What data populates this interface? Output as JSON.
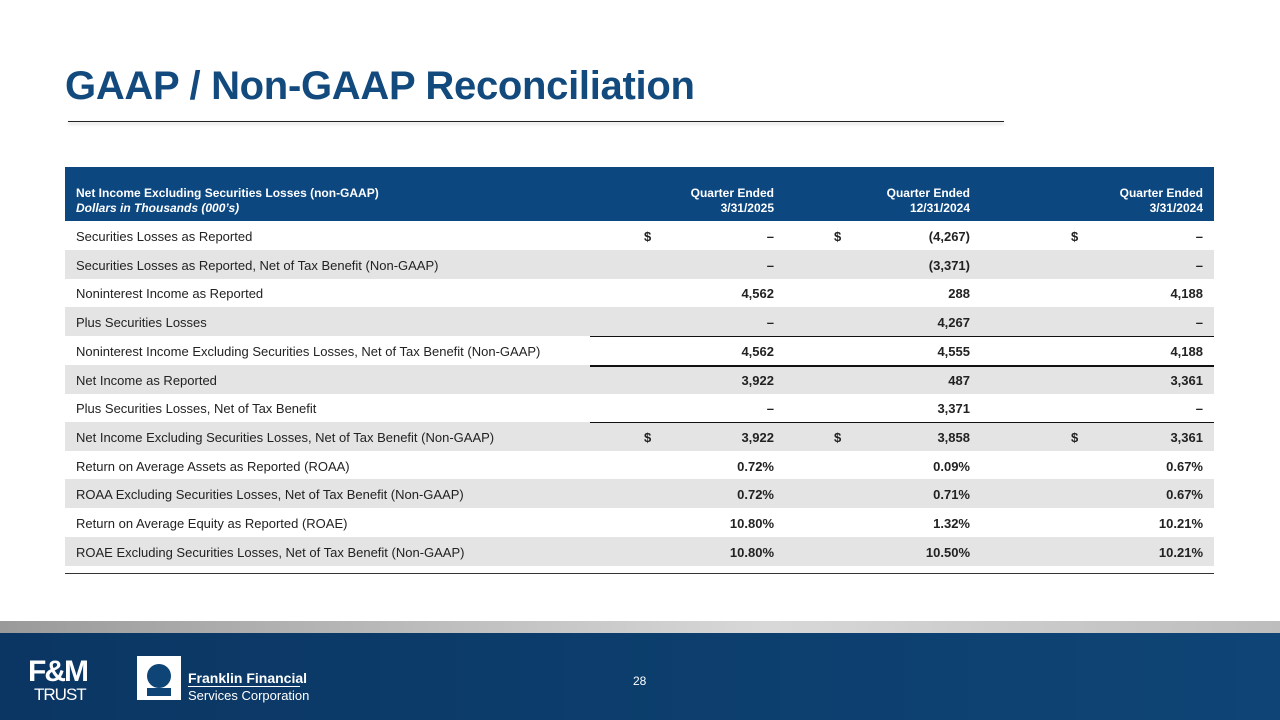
{
  "header": {
    "title": "GAAP / Non-GAAP Reconciliation"
  },
  "table": {
    "heading": [
      "Net Income Excluding Securities Losses (non-GAAP)",
      "Dollars in Thousands (000’s)"
    ],
    "columns": [
      [
        "Quarter Ended",
        "3/31/2025"
      ],
      [
        "Quarter Ended",
        "12/31/2024"
      ],
      [
        "Quarter Ended",
        "3/31/2024"
      ]
    ],
    "rows": [
      {
        "label": "Securities Losses as Reported",
        "dollar": "$",
        "values": [
          "–",
          "(4,267)",
          "–"
        ]
      },
      {
        "label": "Securities Losses as Reported, Net of Tax Benefit (Non-GAAP)",
        "values": [
          "–",
          "(3,371)",
          "–"
        ]
      },
      {
        "label": "Noninterest Income as Reported",
        "values": [
          "4,562",
          "288",
          "4,188"
        ]
      },
      {
        "label": "Plus Securities Losses",
        "values": [
          "–",
          "4,267",
          "–"
        ]
      },
      {
        "label": "Noninterest Income Excluding Securities Losses, Net of Tax Benefit (Non-GAAP)",
        "values": [
          "4,562",
          "4,555",
          "4,188"
        ]
      },
      {
        "label": "Net Income as Reported",
        "values": [
          "3,922",
          "487",
          "3,361"
        ]
      },
      {
        "label": "Plus Securities Losses, Net of Tax Benefit",
        "values": [
          "–",
          "3,371",
          "–"
        ]
      },
      {
        "label": "Net Income Excluding Securities Losses, Net of Tax Benefit (Non-GAAP)",
        "dollar": "$",
        "values": [
          "3,922",
          "3,858",
          "3,361"
        ]
      },
      {
        "label": "Return on Average Assets as Reported (ROAA)",
        "values": [
          "0.72%",
          "0.09%",
          "0.67%"
        ]
      },
      {
        "label": "ROAA Excluding Securities Losses, Net of Tax Benefit (Non-GAAP)",
        "values": [
          "0.72%",
          "0.71%",
          "0.67%"
        ]
      },
      {
        "label": "Return on Average Equity as Reported (ROAE)",
        "values": [
          "10.80%",
          "1.32%",
          "10.21%"
        ]
      },
      {
        "label": "ROAE Excluding Securities Losses, Net of Tax Benefit (Non-GAAP)",
        "values": [
          "10.80%",
          "10.50%",
          "10.21%"
        ]
      }
    ]
  },
  "footer": {
    "page": "28",
    "brand1": [
      "F&M",
      "TRUST"
    ],
    "brand2": [
      "Franklin Financial",
      "Services Corporation"
    ]
  }
}
